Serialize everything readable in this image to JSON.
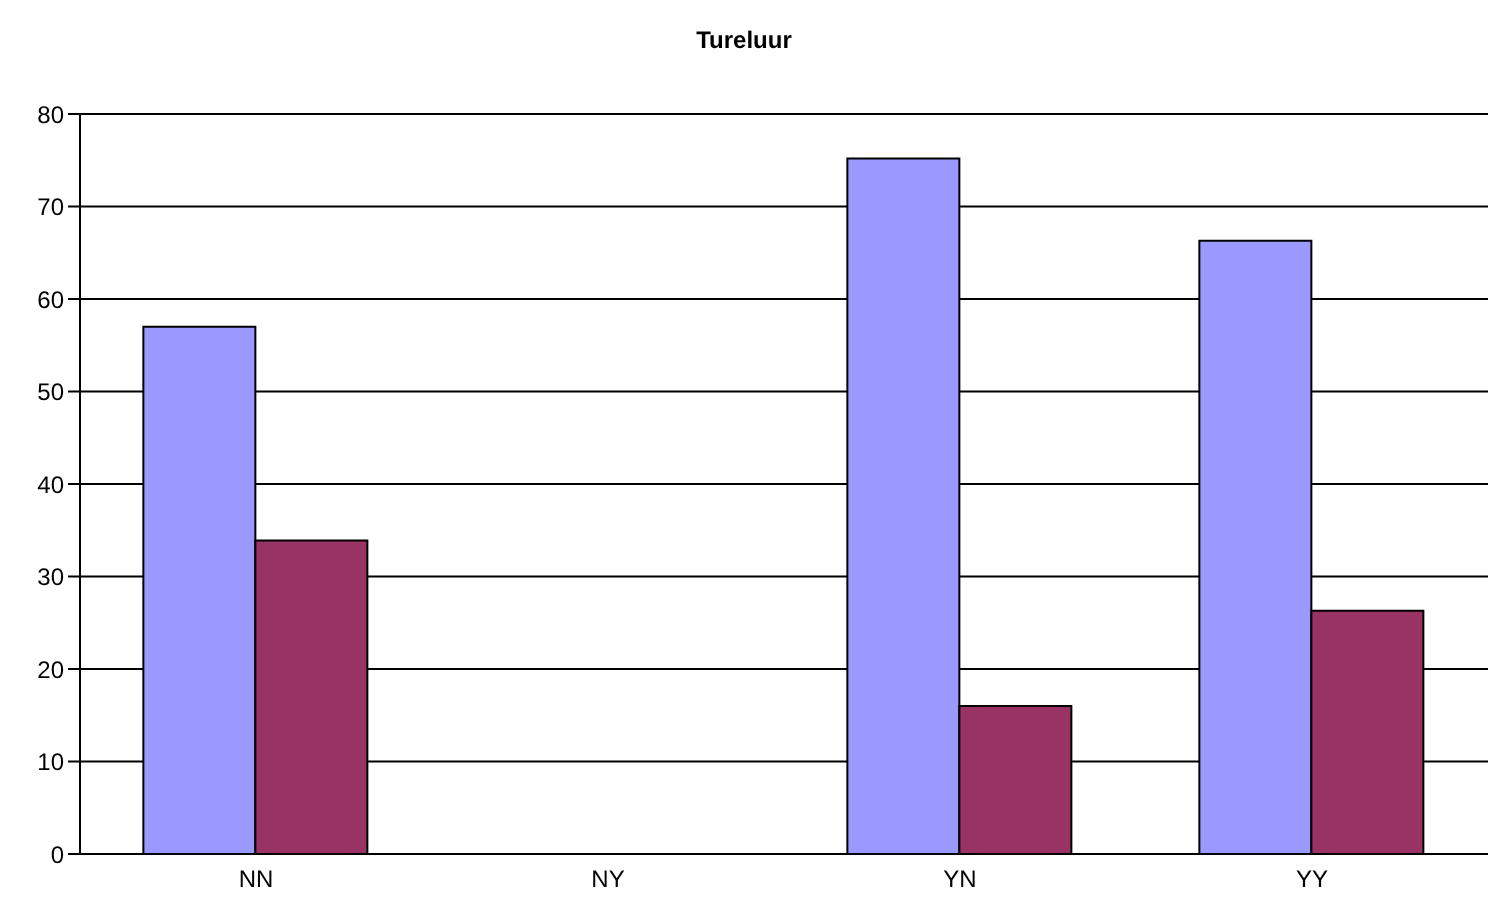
{
  "chart_data": {
    "type": "bar",
    "title": "Tureluur",
    "categories": [
      "NN",
      "NY",
      "YN",
      "YY"
    ],
    "series": [
      {
        "color": "#9999ff",
        "values": [
          57,
          0,
          75.2,
          66.3
        ]
      },
      {
        "color": "#993366",
        "values": [
          33.9,
          0,
          16,
          26.3
        ]
      }
    ],
    "ylim": [
      0,
      80
    ],
    "yticks": [
      0,
      10,
      20,
      30,
      40,
      50,
      60,
      70,
      80
    ],
    "grid": "y",
    "legend": false
  }
}
